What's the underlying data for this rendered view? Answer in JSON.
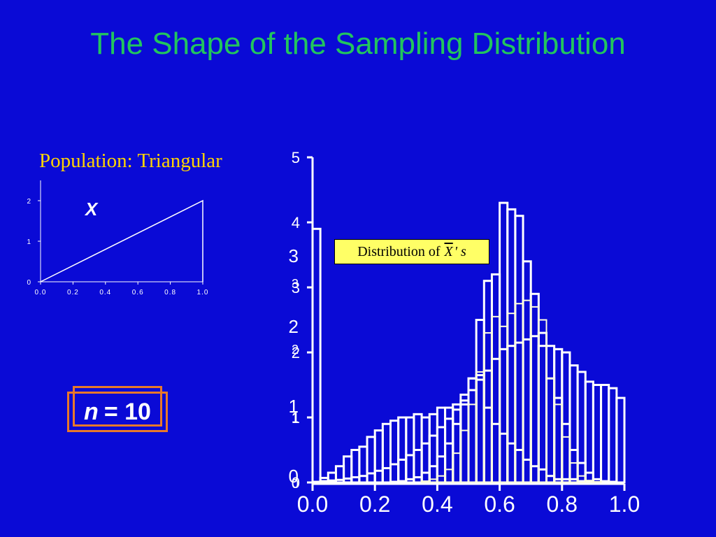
{
  "slide": {
    "title": "The Shape of the Sampling Distribution",
    "population_label": "Population: Triangular",
    "distribution_label_prefix": "Distribution of",
    "distribution_label_symbol": "X",
    "distribution_label_suffix": "' s",
    "sample_size_var": "n",
    "sample_size_text": "= 10",
    "background": "#0a0ad6",
    "title_color": "#22c55e",
    "label_color": "#ffd400",
    "box_color": "#e8782a"
  },
  "chart_data": [
    {
      "type": "line",
      "name": "population",
      "series_label": "X",
      "x": [
        0.0,
        1.0,
        1.0
      ],
      "y": [
        0,
        2,
        0
      ],
      "xlim": [
        0.0,
        1.0
      ],
      "ylim": [
        0,
        2
      ],
      "x_ticks": [
        "0.0",
        "0.2",
        "0.4",
        "0.6",
        "0.8",
        "1.0"
      ],
      "y_ticks": [
        "0",
        "1",
        "2"
      ],
      "line_color": "#ffffff"
    },
    {
      "type": "bar",
      "name": "sampling-distribution",
      "xlim": [
        0.0,
        1.0
      ],
      "ylim": [
        0,
        5
      ],
      "x_ticks": [
        "0.0",
        "0.2",
        "0.4",
        "0.6",
        "0.8",
        "1.0"
      ],
      "y_ticks": [
        "0",
        "1",
        "2",
        "3",
        "4",
        "5"
      ],
      "series": [
        {
          "color": "#ffffff",
          "bin_start": 0.0,
          "bin_width": 0.025,
          "values": [
            3.9,
            0.07,
            0.15,
            0.25,
            0.4,
            0.5,
            0.55,
            0.7,
            0.8,
            0.9,
            0.95,
            1.0,
            1.0,
            1.05,
            1.0,
            1.05,
            1.15,
            1.15,
            1.2,
            1.35,
            1.6,
            1.65,
            1.15,
            0.9,
            0.75,
            0.6,
            0.5,
            0.35,
            0.25,
            0.2,
            0.1,
            0.05,
            0.05,
            0.05,
            0.02,
            0.01,
            0.0,
            0.0,
            0.0,
            0.0
          ]
        },
        {
          "color": "#ffffff",
          "bin_start": 0.0,
          "bin_width": 0.025,
          "values": [
            0.01,
            0.02,
            0.03,
            0.04,
            0.06,
            0.08,
            0.1,
            0.14,
            0.18,
            0.22,
            0.28,
            0.35,
            0.42,
            0.5,
            0.6,
            0.72,
            0.85,
            0.98,
            1.12,
            1.26,
            1.42,
            1.58,
            1.72,
            1.9,
            2.05,
            2.1,
            2.15,
            2.2,
            2.25,
            2.3,
            2.1,
            2.05,
            2.0,
            1.8,
            1.7,
            1.55,
            1.5,
            1.5,
            1.45,
            1.3
          ]
        },
        {
          "color": "#ffffff",
          "bin_start": 0.0,
          "bin_width": 0.025,
          "values": [
            0,
            0,
            0,
            0,
            0,
            0,
            0,
            0,
            0,
            0,
            0.01,
            0.02,
            0.05,
            0.08,
            0.15,
            0.25,
            0.4,
            0.6,
            0.9,
            1.2,
            1.6,
            2.5,
            3.1,
            3.2,
            4.3,
            4.2,
            4.1,
            3.4,
            2.9,
            2.1,
            1.6,
            1.3,
            0.9,
            0.5,
            0.3,
            0.15,
            0.05,
            0.02,
            0.01,
            0
          ]
        },
        {
          "color": "#ffffdd",
          "bin_start": 0.0,
          "bin_width": 0.025,
          "values": [
            0,
            0,
            0,
            0,
            0,
            0,
            0,
            0,
            0,
            0,
            0,
            0,
            0,
            0,
            0.02,
            0.05,
            0.1,
            0.2,
            0.45,
            0.8,
            1.2,
            1.7,
            2.3,
            2.55,
            2.4,
            2.6,
            2.75,
            2.8,
            2.7,
            2.5,
            1.6,
            1.2,
            0.7,
            0.3,
            0.1,
            0.03,
            0.01,
            0,
            0,
            0
          ]
        }
      ],
      "value_labels": [
        "5",
        "4",
        "3",
        "3",
        "2",
        "2",
        "1",
        "1",
        "0",
        "0"
      ]
    }
  ]
}
